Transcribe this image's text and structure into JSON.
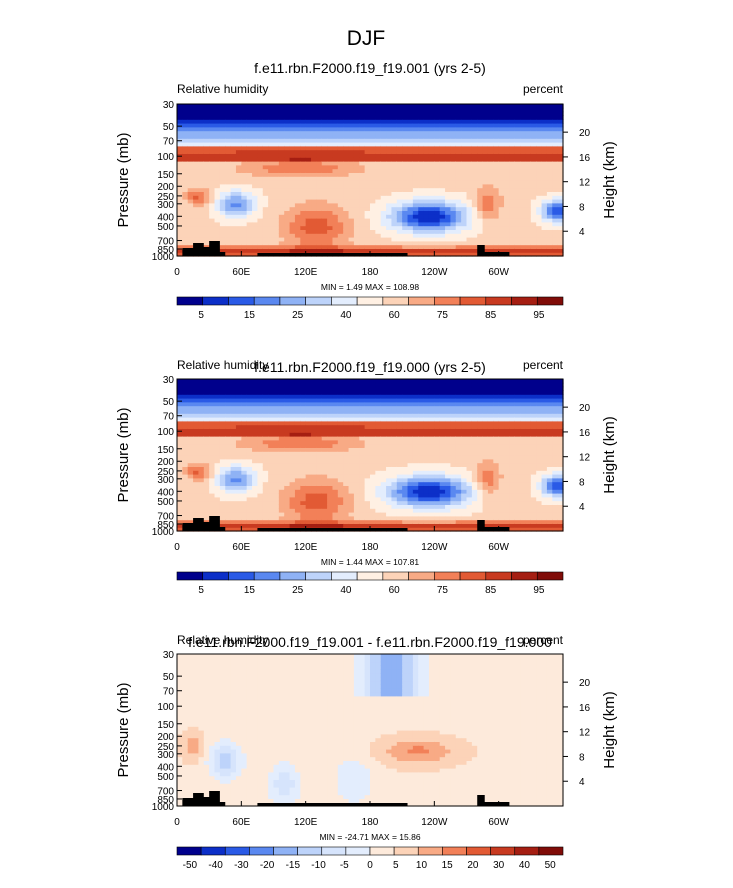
{
  "figure": {
    "title": "DJF"
  },
  "chart_data": [
    {
      "type": "heatmap",
      "title": "f.e11.rbn.F2000.f19_f19.001 (yrs 2-5)",
      "left_label": "Relative humidity",
      "right_label": "percent",
      "ylabel": "Pressure (mb)",
      "ylabel_right": "Height (km)",
      "pressure_ticks": [
        "1000",
        "850",
        "700",
        "500",
        "400",
        "300",
        "250",
        "200",
        "150",
        "100",
        "70",
        "50",
        "30"
      ],
      "height_ticks": [
        "4",
        "8",
        "12",
        "16",
        "20"
      ],
      "x_ticks": [
        "0",
        "60E",
        "120E",
        "180",
        "120W",
        "60W"
      ],
      "stats": "MIN =   1.49  MAX = 108.98",
      "min": 1.49,
      "max": 108.98,
      "colorbar_labels": [
        "5",
        "15",
        "25",
        "40",
        "60",
        "75",
        "85",
        "95"
      ],
      "colorbar_colors": [
        "#00008c",
        "#0c2fc8",
        "#2a5ae6",
        "#5a88f0",
        "#8fb2f5",
        "#bdd3fa",
        "#e3edfd",
        "#fff0e3",
        "#fcd3b8",
        "#f8aa85",
        "#f28058",
        "#e25a34",
        "#c83a20",
        "#a51e12",
        "#800c08"
      ]
    },
    {
      "type": "heatmap",
      "title": "f.e11.rbn.F2000.f19_f19.000 (yrs 2-5)",
      "left_label": "Relative humidity",
      "right_label": "percent",
      "ylabel": "Pressure (mb)",
      "ylabel_right": "Height (km)",
      "pressure_ticks": [
        "1000",
        "850",
        "700",
        "500",
        "400",
        "300",
        "250",
        "200",
        "150",
        "100",
        "70",
        "50",
        "30"
      ],
      "height_ticks": [
        "4",
        "8",
        "12",
        "16",
        "20"
      ],
      "x_ticks": [
        "0",
        "60E",
        "120E",
        "180",
        "120W",
        "60W"
      ],
      "stats": "MIN =   1.44  MAX = 107.81",
      "min": 1.44,
      "max": 107.81,
      "colorbar_labels": [
        "5",
        "15",
        "25",
        "40",
        "60",
        "75",
        "85",
        "95"
      ],
      "colorbar_colors": [
        "#00008c",
        "#0c2fc8",
        "#2a5ae6",
        "#5a88f0",
        "#8fb2f5",
        "#bdd3fa",
        "#e3edfd",
        "#fff0e3",
        "#fcd3b8",
        "#f8aa85",
        "#f28058",
        "#e25a34",
        "#c83a20",
        "#a51e12",
        "#800c08"
      ]
    },
    {
      "type": "heatmap",
      "title": "f.e11.rbn.F2000.f19_f19.001 - f.e11.rbn.F2000.f19_f19.000",
      "left_label": "Relative humidity",
      "right_label": "percent",
      "ylabel": "Pressure (mb)",
      "ylabel_right": "Height (km)",
      "pressure_ticks": [
        "1000",
        "850",
        "700",
        "500",
        "400",
        "300",
        "250",
        "200",
        "150",
        "100",
        "70",
        "50",
        "30"
      ],
      "height_ticks": [
        "4",
        "8",
        "12",
        "16",
        "20"
      ],
      "x_ticks": [
        "0",
        "60E",
        "120E",
        "180",
        "120W",
        "60W"
      ],
      "stats": "MIN = -24.71  MAX =  15.86",
      "min": -24.71,
      "max": 15.86,
      "colorbar_labels": [
        "-50",
        "-40",
        "-30",
        "-20",
        "-15",
        "-10",
        "-5",
        "0",
        "5",
        "10",
        "15",
        "20",
        "30",
        "40",
        "50"
      ],
      "colorbar_colors": [
        "#00008c",
        "#0c2fc8",
        "#2a5ae6",
        "#5a88f0",
        "#8fb2f5",
        "#bdd3fa",
        "#d6e4fc",
        "#e3edfd",
        "#fdeadb",
        "#fcd3b8",
        "#f8aa85",
        "#f28058",
        "#e25a34",
        "#c83a20",
        "#a51e12",
        "#800c08"
      ]
    }
  ]
}
